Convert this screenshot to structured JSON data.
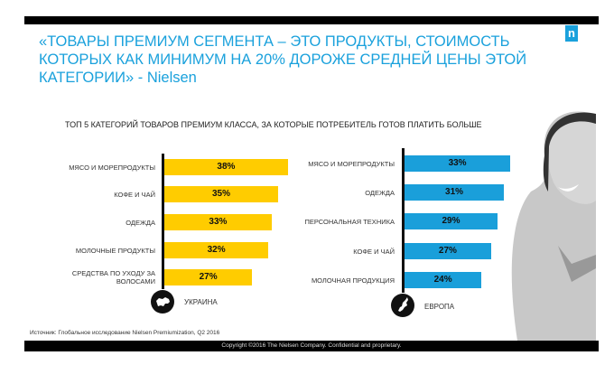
{
  "logo_letter": "n",
  "title": "«ТОВАРЫ ПРЕМИУМ СЕГМЕНТА – ЭТО ПРОДУКТЫ, СТОИМОСТЬ КОТОРЫХ КАК МИНИМУМ НА 20% ДОРОЖЕ СРЕДНЕЙ ЦЕНЫ ЭТОЙ КАТЕГОРИИ» - Nielsen",
  "chart_data": [
    {
      "type": "bar",
      "title": "ТОП 5 КАТЕГОРИЙ ТОВАРОВ ПРЕМИУМ КЛАССА, ЗА КОТОРЫЕ ПОТРЕБИТЕЛЬ ГОТОВ ПЛАТИТЬ БОЛЬШЕ",
      "region": "УКРАИНА",
      "color": "#ffcc00",
      "categories": [
        "МЯСО И МОРЕПРОДУКТЫ",
        "КОФЕ И ЧАЙ",
        "ОДЕЖДА",
        "МОЛОЧНЫЕ ПРОДУКТЫ",
        "СРЕДСТВА ПО УХОДУ ЗА ВОЛОСАМИ"
      ],
      "values": [
        38,
        35,
        33,
        32,
        27
      ],
      "labels": [
        "38%",
        "35%",
        "33%",
        "32%",
        "27%"
      ]
    },
    {
      "type": "bar",
      "region": "ЕВРОПА",
      "color": "#1a9fda",
      "categories": [
        "МЯСО И МОРЕПРОДУКТЫ",
        "ОДЕЖДА",
        "ПЕРСОНАЛЬНАЯ ТЕХНИКА",
        "КОФЕ И ЧАЙ",
        "МОЛОЧНАЯ ПРОДУКЦИЯ"
      ],
      "values": [
        33,
        31,
        29,
        27,
        24
      ],
      "labels": [
        "33%",
        "31%",
        "29%",
        "27%",
        "24%"
      ]
    }
  ],
  "source": "Источник: Глобальное исследование Nielsen Premiumization, Q2 2016",
  "footer": "Copyright ©2016 The Nielsen Company. Confidential and proprietary."
}
